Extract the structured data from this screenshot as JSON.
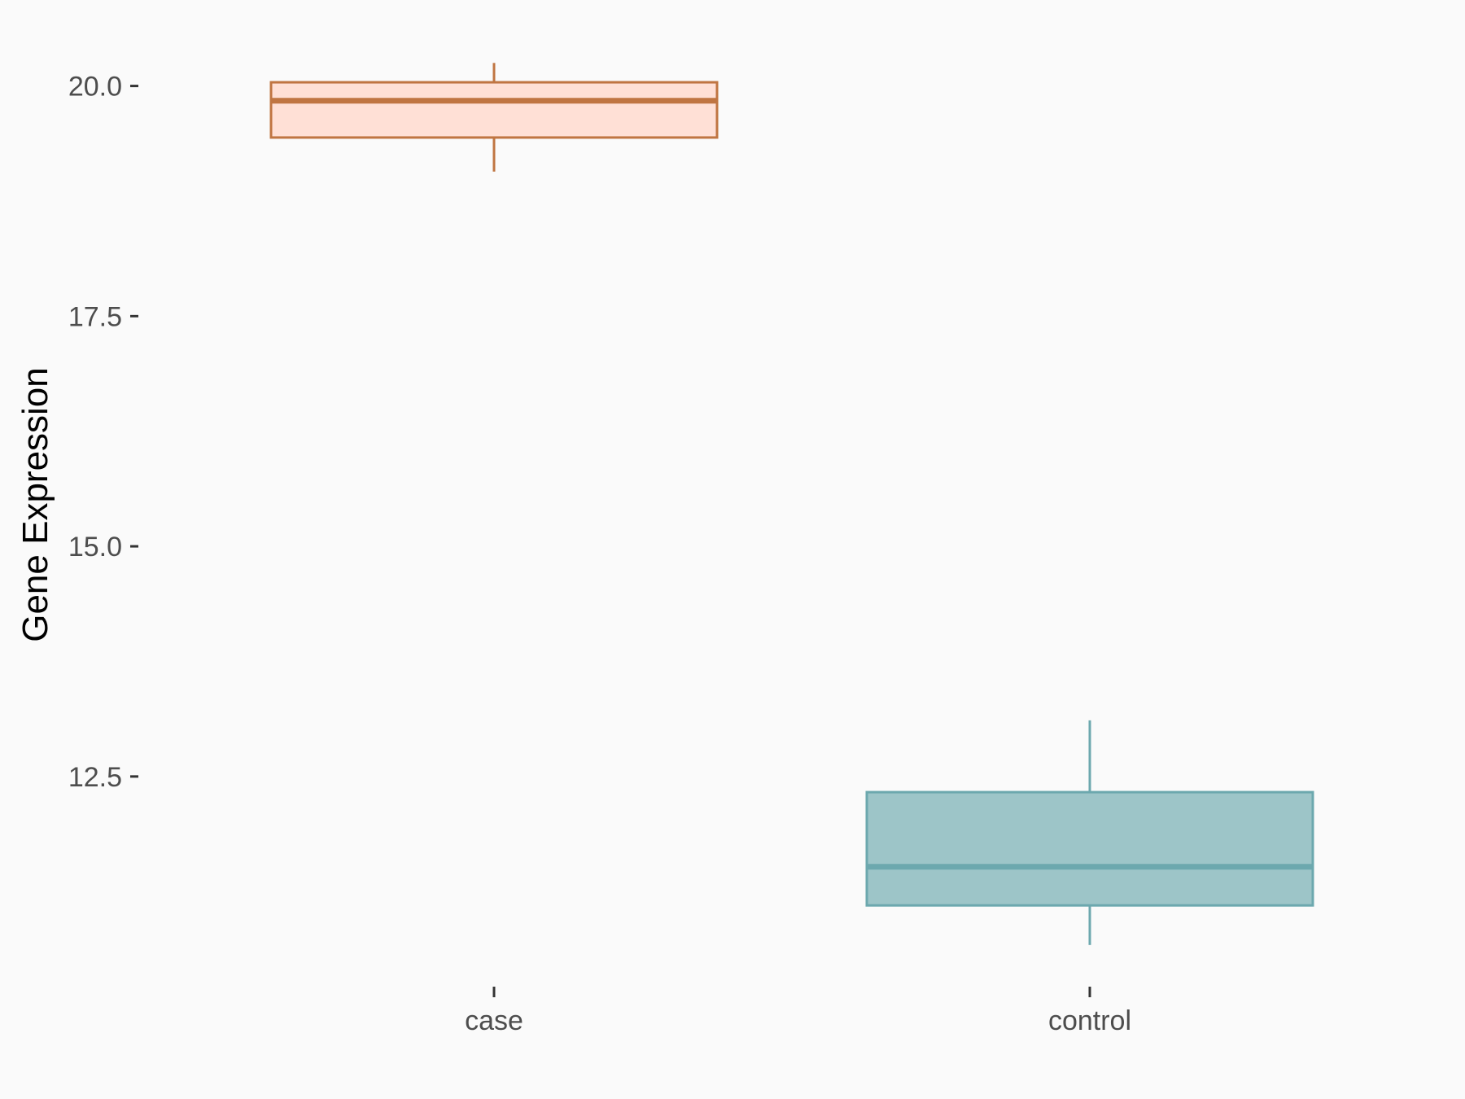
{
  "chart_data": {
    "type": "box",
    "title": "",
    "xlabel": "",
    "ylabel": "Gene Expression",
    "ylim": [
      10.0,
      20.5
    ],
    "yticks": [
      12.5,
      15.0,
      17.5,
      20.0
    ],
    "ytick_labels": [
      "12.5",
      "15.0",
      "17.5",
      "20.0"
    ],
    "categories": [
      "case",
      "control"
    ],
    "grid": false,
    "legend": "none",
    "boxes": [
      {
        "category": "case",
        "whisker_low": 19.07,
        "q1": 19.44,
        "median": 19.84,
        "q3": 20.04,
        "whisker_high": 20.25,
        "fill": "#FFE0D6",
        "stroke": "#C07542"
      },
      {
        "category": "control",
        "whisker_low": 10.67,
        "q1": 11.1,
        "median": 11.52,
        "q3": 12.33,
        "whisker_high": 13.11,
        "fill": "#9DC5C8",
        "stroke": "#6CA8AE"
      }
    ],
    "colors": {
      "background": "#FAFAFA",
      "tick_text": "#4D4D4D",
      "axis_title": "#000000"
    }
  }
}
